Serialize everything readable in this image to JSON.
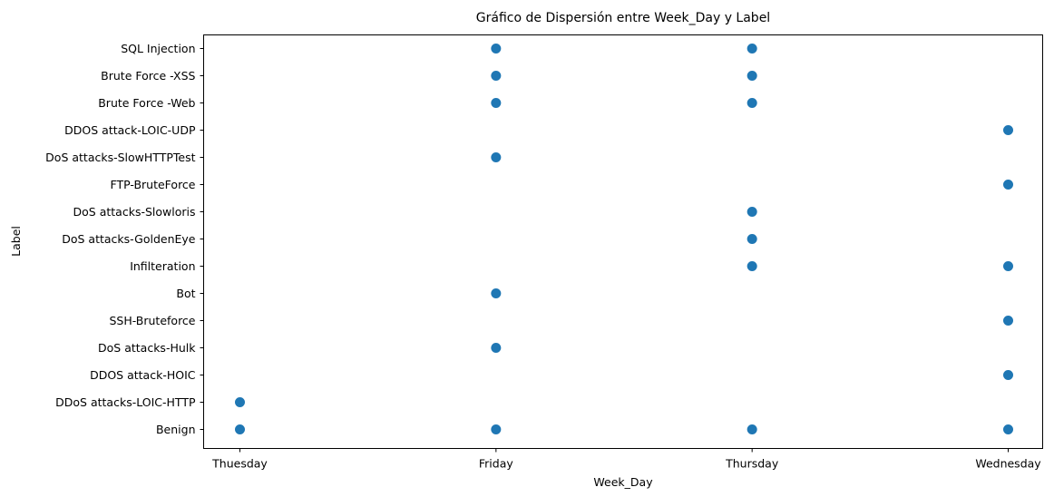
{
  "chart_data": {
    "type": "scatter",
    "title": "Gráfico de Dispersión entre Week_Day y Label",
    "xlabel": "Week_Day",
    "ylabel": "Label",
    "x_categories": [
      "Thuesday",
      "Friday",
      "Thursday",
      "Wednesday"
    ],
    "y_categories": [
      "Benign",
      "DDoS attacks-LOIC-HTTP",
      "DDOS attack-HOIC",
      "DoS attacks-Hulk",
      "SSH-Bruteforce",
      "Bot",
      "Infilteration",
      "DoS attacks-GoldenEye",
      "DoS attacks-Slowloris",
      "FTP-BruteForce",
      "DoS attacks-SlowHTTPTest",
      "DDOS attack-LOIC-UDP",
      "Brute Force -Web",
      "Brute Force -XSS",
      "SQL Injection"
    ],
    "points": [
      {
        "x": "Thuesday",
        "y": "Benign"
      },
      {
        "x": "Thuesday",
        "y": "DDoS attacks-LOIC-HTTP"
      },
      {
        "x": "Friday",
        "y": "Benign"
      },
      {
        "x": "Friday",
        "y": "DoS attacks-Hulk"
      },
      {
        "x": "Friday",
        "y": "Bot"
      },
      {
        "x": "Friday",
        "y": "DoS attacks-SlowHTTPTest"
      },
      {
        "x": "Friday",
        "y": "Brute Force -Web"
      },
      {
        "x": "Friday",
        "y": "Brute Force -XSS"
      },
      {
        "x": "Friday",
        "y": "SQL Injection"
      },
      {
        "x": "Thursday",
        "y": "Benign"
      },
      {
        "x": "Thursday",
        "y": "Infilteration"
      },
      {
        "x": "Thursday",
        "y": "DoS attacks-GoldenEye"
      },
      {
        "x": "Thursday",
        "y": "DoS attacks-Slowloris"
      },
      {
        "x": "Thursday",
        "y": "Brute Force -Web"
      },
      {
        "x": "Thursday",
        "y": "Brute Force -XSS"
      },
      {
        "x": "Thursday",
        "y": "SQL Injection"
      },
      {
        "x": "Wednesday",
        "y": "Benign"
      },
      {
        "x": "Wednesday",
        "y": "DDOS attack-HOIC"
      },
      {
        "x": "Wednesday",
        "y": "SSH-Bruteforce"
      },
      {
        "x": "Wednesday",
        "y": "Infilteration"
      },
      {
        "x": "Wednesday",
        "y": "FTP-BruteForce"
      },
      {
        "x": "Wednesday",
        "y": "DDOS attack-LOIC-UDP"
      }
    ],
    "marker_color": "#1f77b4",
    "grid": false,
    "legend": "none"
  }
}
